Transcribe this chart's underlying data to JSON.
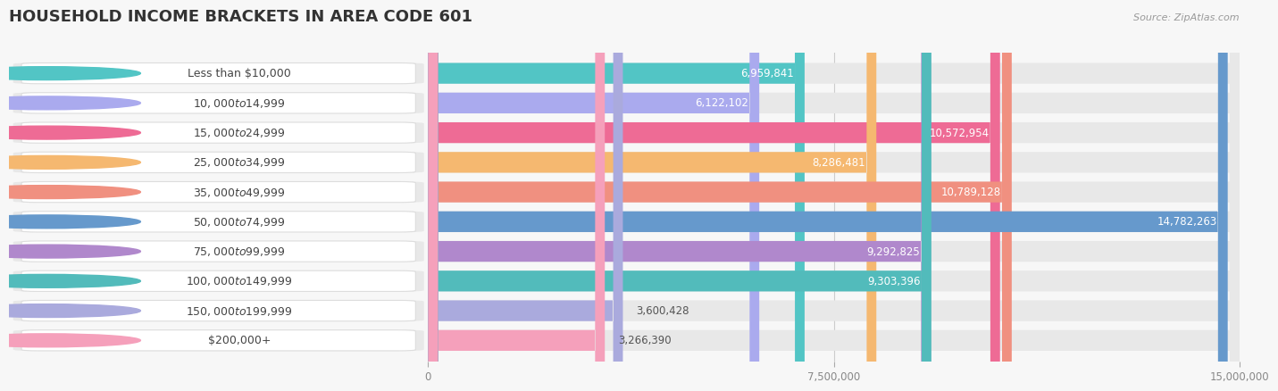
{
  "title": "HOUSEHOLD INCOME BRACKETS IN AREA CODE 601",
  "source": "Source: ZipAtlas.com",
  "categories": [
    "Less than $10,000",
    "$10,000 to $14,999",
    "$15,000 to $24,999",
    "$25,000 to $34,999",
    "$35,000 to $49,999",
    "$50,000 to $74,999",
    "$75,000 to $99,999",
    "$100,000 to $149,999",
    "$150,000 to $199,999",
    "$200,000+"
  ],
  "values": [
    6959841,
    6122102,
    10572954,
    8286481,
    10789128,
    14782263,
    9292825,
    9303396,
    3600428,
    3266390
  ],
  "bar_colors": [
    "#52C5C5",
    "#AAAAEE",
    "#EE6B95",
    "#F5B870",
    "#F09080",
    "#6699CC",
    "#B088CC",
    "#52BBBB",
    "#AAAADD",
    "#F5A0BB"
  ],
  "value_colors": [
    "#555555",
    "#555555",
    "#ffffff",
    "#555555",
    "#ffffff",
    "#ffffff",
    "#ffffff",
    "#ffffff",
    "#555555",
    "#555555"
  ],
  "xlim": [
    0,
    15000000
  ],
  "xticks": [
    0,
    7500000,
    15000000
  ],
  "xtick_labels": [
    "0",
    "7,500,000",
    "15,000,000"
  ],
  "background_color": "#f7f7f7",
  "bar_bg_color": "#e8e8e8",
  "title_fontsize": 13,
  "label_fontsize": 9,
  "value_fontsize": 8.5
}
